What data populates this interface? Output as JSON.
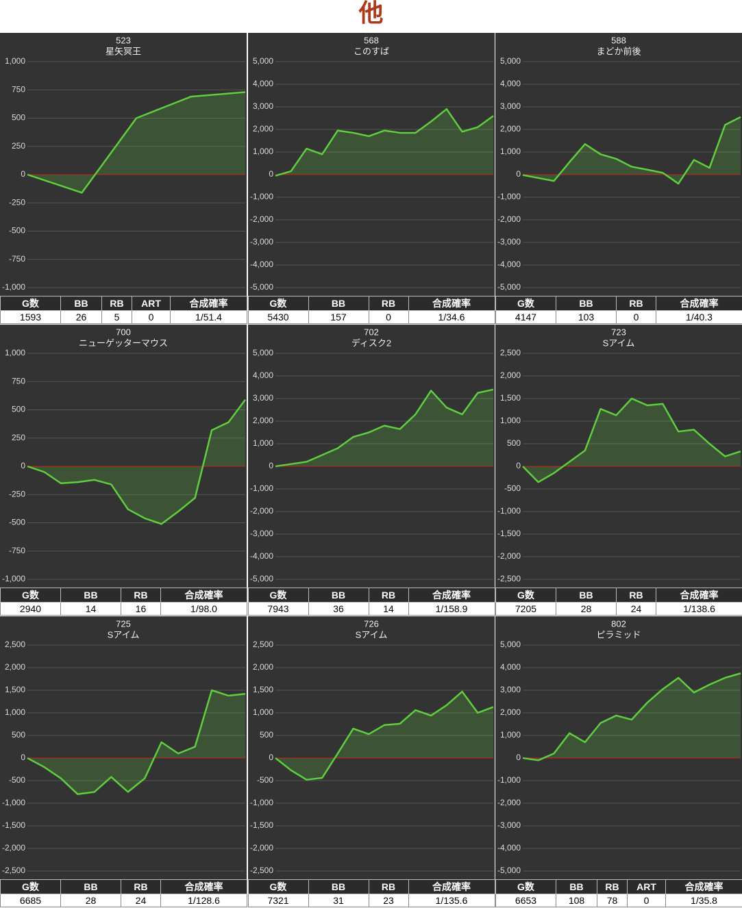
{
  "title": "他",
  "chart_data": [
    {
      "type": "line",
      "title": "523",
      "subtitle": "星矢冥王",
      "color": "#5fcf3f",
      "values": [
        0,
        -160,
        500,
        690,
        730
      ],
      "ylim": [
        -1000,
        1000
      ],
      "yticks": [
        {
          "value": -1000,
          "label": "-1,000"
        },
        -750,
        -500,
        -250,
        0,
        250,
        500,
        750,
        {
          "value": 1000,
          "label": "1,000"
        }
      ],
      "grid": true,
      "table": {
        "headers": [
          "G数",
          "BB",
          "RB",
          "ART",
          "合成確率"
        ],
        "row": [
          1593,
          26,
          5,
          0,
          "1/51.4"
        ]
      }
    },
    {
      "type": "line",
      "title": "568",
      "subtitle": "このすば",
      "color": "#5fcf3f",
      "values": [
        -50,
        150,
        1150,
        900,
        1950,
        1850,
        1700,
        1950,
        1850,
        1850,
        2350,
        2900,
        1900,
        2100,
        2600
      ],
      "ylim": [
        -5000,
        5000
      ],
      "yticks": [
        {
          "value": -5000,
          "label": "-5,000"
        },
        {
          "value": -4000,
          "label": "-4,000"
        },
        {
          "value": -3000,
          "label": "-3,000"
        },
        {
          "value": -2000,
          "label": "-2,000"
        },
        {
          "value": -1000,
          "label": "-1,000"
        },
        0,
        {
          "value": 1000,
          "label": "1,000"
        },
        {
          "value": 2000,
          "label": "2,000"
        },
        {
          "value": 3000,
          "label": "3,000"
        },
        {
          "value": 4000,
          "label": "4,000"
        },
        {
          "value": 5000,
          "label": "5,000"
        }
      ],
      "grid": true,
      "table": {
        "headers": [
          "G数",
          "BB",
          "RB",
          "合成確率"
        ],
        "row": [
          5430,
          157,
          0,
          "1/34.6"
        ]
      }
    },
    {
      "type": "line",
      "title": "588",
      "subtitle": "まどか前後",
      "color": "#5fcf3f",
      "values": [
        -20,
        -150,
        -280,
        550,
        1350,
        900,
        700,
        350,
        220,
        80,
        -400,
        650,
        300,
        2200,
        2550
      ],
      "ylim": [
        -5000,
        5000
      ],
      "yticks": [
        {
          "value": -5000,
          "label": "-5,000"
        },
        {
          "value": -4000,
          "label": "-4,000"
        },
        {
          "value": -3000,
          "label": "-3,000"
        },
        {
          "value": -2000,
          "label": "-2,000"
        },
        {
          "value": -1000,
          "label": "-1,000"
        },
        0,
        {
          "value": 1000,
          "label": "1,000"
        },
        {
          "value": 2000,
          "label": "2,000"
        },
        {
          "value": 3000,
          "label": "3,000"
        },
        {
          "value": 4000,
          "label": "4,000"
        },
        {
          "value": 5000,
          "label": "5,000"
        }
      ],
      "grid": true,
      "table": {
        "headers": [
          "G数",
          "BB",
          "RB",
          "合成確率"
        ],
        "row": [
          4147,
          103,
          0,
          "1/40.3"
        ]
      }
    },
    {
      "type": "line",
      "title": "700",
      "subtitle": "ニューゲッターマウス",
      "color": "#5fcf3f",
      "values": [
        0,
        -50,
        -150,
        -140,
        -120,
        -160,
        -380,
        -460,
        -510,
        -400,
        -280,
        320,
        390,
        590
      ],
      "ylim": [
        -1000,
        1000
      ],
      "yticks": [
        {
          "value": -1000,
          "label": "-1,000"
        },
        -750,
        -500,
        -250,
        0,
        250,
        500,
        750,
        {
          "value": 1000,
          "label": "1,000"
        }
      ],
      "grid": true,
      "table": {
        "headers": [
          "G数",
          "BB",
          "RB",
          "合成確率"
        ],
        "row": [
          2940,
          14,
          16,
          "1/98.0"
        ]
      }
    },
    {
      "type": "line",
      "title": "702",
      "subtitle": "ディスク2",
      "color": "#5fcf3f",
      "values": [
        0,
        100,
        200,
        500,
        800,
        1300,
        1500,
        1800,
        1650,
        2300,
        3350,
        2600,
        2300,
        3250,
        3400
      ],
      "ylim": [
        -5000,
        5000
      ],
      "yticks": [
        {
          "value": -5000,
          "label": "-5,000"
        },
        {
          "value": -4000,
          "label": "-4,000"
        },
        {
          "value": -3000,
          "label": "-3,000"
        },
        {
          "value": -2000,
          "label": "-2,000"
        },
        {
          "value": -1000,
          "label": "-1,000"
        },
        0,
        {
          "value": 1000,
          "label": "1,000"
        },
        {
          "value": 2000,
          "label": "2,000"
        },
        {
          "value": 3000,
          "label": "3,000"
        },
        {
          "value": 4000,
          "label": "4,000"
        },
        {
          "value": 5000,
          "label": "5,000"
        }
      ],
      "grid": true,
      "table": {
        "headers": [
          "G数",
          "BB",
          "RB",
          "合成確率"
        ],
        "row": [
          7943,
          36,
          14,
          "1/158.9"
        ]
      }
    },
    {
      "type": "line",
      "title": "723",
      "subtitle": "Sアイム",
      "color": "#5fcf3f",
      "values": [
        0,
        -350,
        -150,
        100,
        350,
        1270,
        1130,
        1500,
        1350,
        1380,
        770,
        810,
        500,
        220,
        330
      ],
      "ylim": [
        -2500,
        2500
      ],
      "yticks": [
        {
          "value": -2500,
          "label": "-2,500"
        },
        {
          "value": -2000,
          "label": "-2,000"
        },
        {
          "value": -1500,
          "label": "-1,500"
        },
        {
          "value": -1000,
          "label": "-1,000"
        },
        -500,
        0,
        500,
        {
          "value": 1000,
          "label": "1,000"
        },
        {
          "value": 1500,
          "label": "1,500"
        },
        {
          "value": 2000,
          "label": "2,000"
        },
        {
          "value": 2500,
          "label": "2,500"
        }
      ],
      "grid": true,
      "table": {
        "headers": [
          "G数",
          "BB",
          "RB",
          "合成確率"
        ],
        "row": [
          7205,
          28,
          24,
          "1/138.6"
        ]
      }
    },
    {
      "type": "line",
      "title": "725",
      "subtitle": "Sアイム",
      "color": "#5fcf3f",
      "values": [
        0,
        -200,
        -450,
        -800,
        -750,
        -420,
        -750,
        -450,
        350,
        100,
        250,
        1500,
        1380,
        1420
      ],
      "ylim": [
        -2500,
        2500
      ],
      "yticks": [
        {
          "value": -2500,
          "label": "-2,500"
        },
        {
          "value": -2000,
          "label": "-2,000"
        },
        {
          "value": -1500,
          "label": "-1,500"
        },
        {
          "value": -1000,
          "label": "-1,000"
        },
        -500,
        0,
        500,
        {
          "value": 1000,
          "label": "1,000"
        },
        {
          "value": 1500,
          "label": "1,500"
        },
        {
          "value": 2000,
          "label": "2,000"
        },
        {
          "value": 2500,
          "label": "2,500"
        }
      ],
      "grid": true,
      "table": {
        "headers": [
          "G数",
          "BB",
          "RB",
          "合成確率"
        ],
        "row": [
          6685,
          28,
          24,
          "1/128.6"
        ]
      }
    },
    {
      "type": "line",
      "title": "726",
      "subtitle": "Sアイム",
      "color": "#5fcf3f",
      "values": [
        0,
        -270,
        -480,
        -440,
        100,
        650,
        530,
        730,
        760,
        1060,
        940,
        1170,
        1470,
        1000,
        1130
      ],
      "ylim": [
        -2500,
        2500
      ],
      "yticks": [
        {
          "value": -2500,
          "label": "-2,500"
        },
        {
          "value": -2000,
          "label": "-2,000"
        },
        {
          "value": -1500,
          "label": "-1,500"
        },
        {
          "value": -1000,
          "label": "-1,000"
        },
        -500,
        0,
        500,
        {
          "value": 1000,
          "label": "1,000"
        },
        {
          "value": 1500,
          "label": "1,500"
        },
        {
          "value": 2000,
          "label": "2,000"
        },
        {
          "value": 2500,
          "label": "2,500"
        }
      ],
      "grid": true,
      "table": {
        "headers": [
          "G数",
          "BB",
          "RB",
          "合成確率"
        ],
        "row": [
          7321,
          31,
          23,
          "1/135.6"
        ]
      }
    },
    {
      "type": "line",
      "title": "802",
      "subtitle": "ピラミッド",
      "color": "#5fcf3f",
      "values": [
        0,
        -100,
        200,
        1100,
        700,
        1550,
        1880,
        1700,
        2450,
        3050,
        3550,
        2900,
        3250,
        3550,
        3750
      ],
      "ylim": [
        -5000,
        5000
      ],
      "yticks": [
        {
          "value": -5000,
          "label": "-5,000"
        },
        {
          "value": -4000,
          "label": "-4,000"
        },
        {
          "value": -3000,
          "label": "-3,000"
        },
        {
          "value": -2000,
          "label": "-2,000"
        },
        {
          "value": -1000,
          "label": "-1,000"
        },
        0,
        {
          "value": 1000,
          "label": "1,000"
        },
        {
          "value": 2000,
          "label": "2,000"
        },
        {
          "value": 3000,
          "label": "3,000"
        },
        {
          "value": 4000,
          "label": "4,000"
        },
        {
          "value": 5000,
          "label": "5,000"
        }
      ],
      "grid": true,
      "table": {
        "headers": [
          "G数",
          "BB",
          "RB",
          "ART",
          "合成確率"
        ],
        "row": [
          6653,
          108,
          78,
          0,
          "1/35.8"
        ]
      }
    }
  ]
}
